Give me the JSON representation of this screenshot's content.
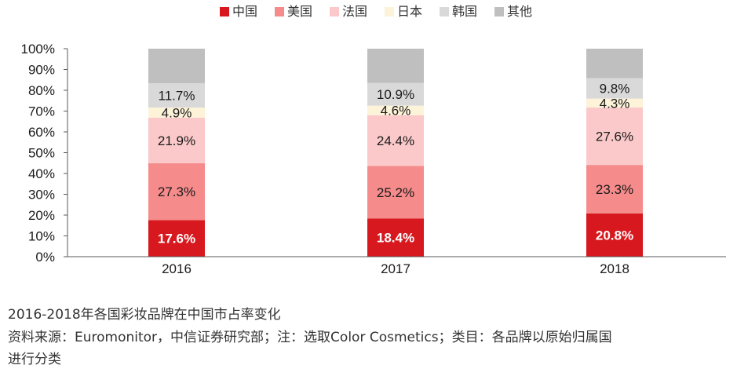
{
  "chart_data": {
    "type": "bar",
    "stacked": true,
    "percent": true,
    "categories": [
      "2016",
      "2017",
      "2018"
    ],
    "series": [
      {
        "name": "中国",
        "color": "#d7191f",
        "values": [
          17.6,
          18.4,
          20.8
        ],
        "labels": [
          "17.6%",
          "18.4%",
          "20.8%"
        ]
      },
      {
        "name": "美国",
        "color": "#f58b8b",
        "values": [
          27.3,
          25.2,
          23.3
        ],
        "labels": [
          "27.3%",
          "25.2%",
          "23.3%"
        ]
      },
      {
        "name": "法国",
        "color": "#fbc9c9",
        "values": [
          21.9,
          24.4,
          27.6
        ],
        "labels": [
          "21.9%",
          "24.4%",
          "27.6%"
        ]
      },
      {
        "name": "日本",
        "color": "#fdf3d9",
        "values": [
          4.9,
          4.6,
          4.3
        ],
        "labels": [
          "4.9%",
          "4.6%",
          "4.3%"
        ]
      },
      {
        "name": "韩国",
        "color": "#d9d9d9",
        "values": [
          11.7,
          10.9,
          9.8
        ],
        "labels": [
          "11.7%",
          "10.9%",
          "9.8%"
        ]
      },
      {
        "name": "其他",
        "color": "#bfbfbf",
        "values": [
          16.6,
          16.5,
          14.2
        ],
        "labels": [
          "",
          "",
          ""
        ]
      }
    ],
    "yticks": [
      "0%",
      "10%",
      "20%",
      "30%",
      "40%",
      "50%",
      "60%",
      "70%",
      "80%",
      "90%",
      "100%"
    ],
    "ylim": [
      0,
      100
    ],
    "legend_position": "top",
    "grid": false
  },
  "caption": {
    "title": "2016-2018年各国彩妆品牌在中国市占率变化",
    "source_line1": "资料来源：Euromonitor，中信证券研究部；注：选取Color Cosmetics；类目：各品牌以原始归属国",
    "source_line2": "进行分类"
  }
}
